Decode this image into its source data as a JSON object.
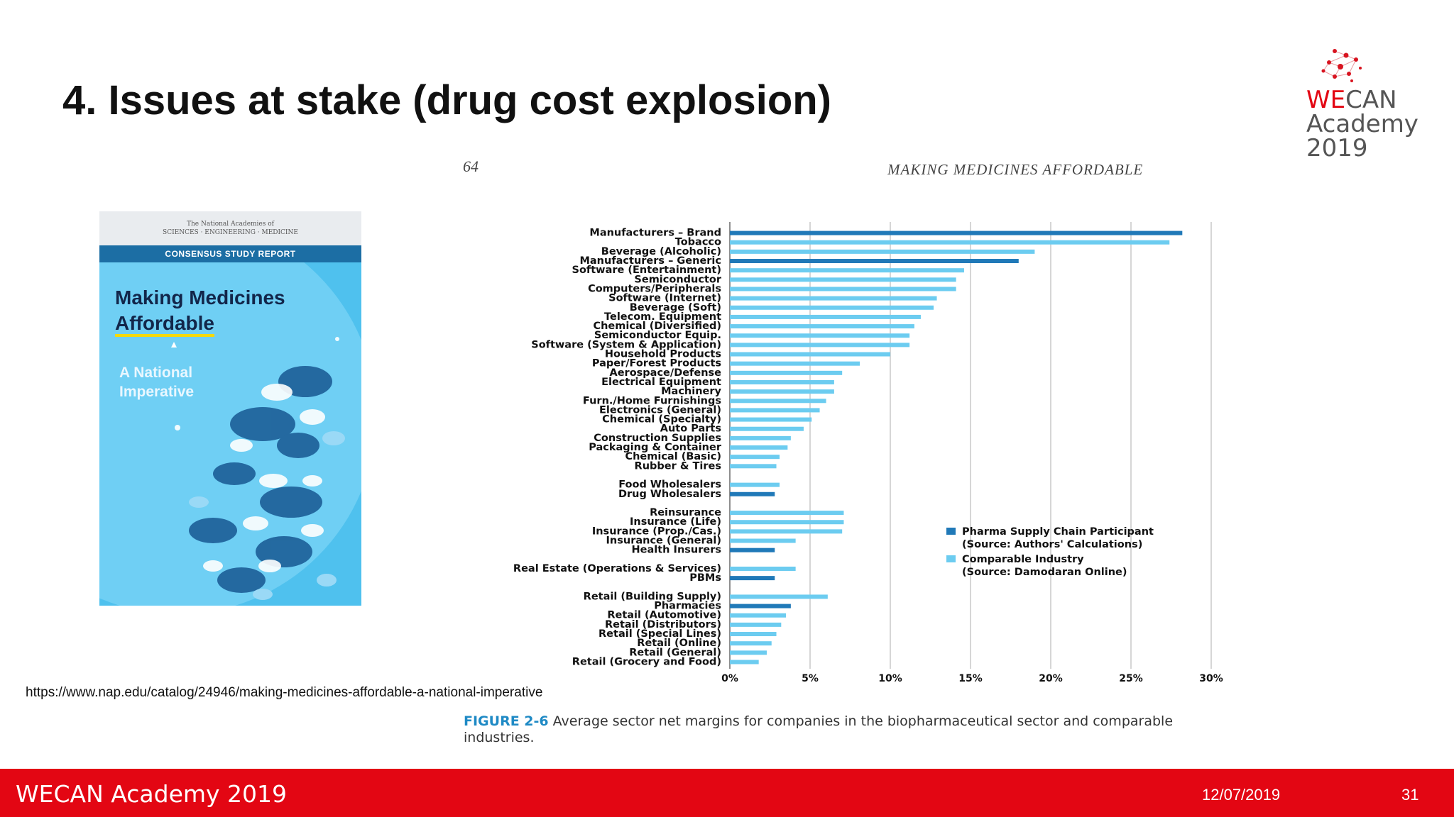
{
  "slide": {
    "title": "4. Issues at stake (drug cost explosion)",
    "source_url": "https://www.nap.edu/catalog/24946/making-medicines-affordable-a-national-imperative",
    "footer_brand": "WECAN Academy 2019",
    "footer_date": "12/07/2019",
    "page_number": "31"
  },
  "logo": {
    "we": "WE",
    "can": "CAN",
    "line2": "Academy",
    "line3": "2019"
  },
  "book": {
    "publisher_line1": "The National Academies of",
    "publisher_line2": "SCIENCES · ENGINEERING · MEDICINE",
    "band": "CONSENSUS STUDY REPORT",
    "title_line1": "Making Medicines",
    "title_line2": "Affordable",
    "subtitle_line1": "A National",
    "subtitle_line2": "Imperative"
  },
  "page_header": {
    "page_number": "64",
    "running_head": "MAKING MEDICINES AFFORDABLE"
  },
  "figure": {
    "label": "FIGURE 2-6",
    "caption": "Average sector net margins for companies in the biopharmaceutical sector and comparable industries."
  },
  "colors": {
    "pharma": "#2079b8",
    "comparable": "#6cccf0",
    "footer": "#e30613"
  },
  "chart_data": {
    "type": "bar",
    "orientation": "horizontal",
    "xlim": [
      0,
      30
    ],
    "x_ticks": [
      "0%",
      "5%",
      "10%",
      "15%",
      "20%",
      "25%",
      "30%"
    ],
    "grid": true,
    "legend_position": "right",
    "legend": [
      {
        "key": "pharma",
        "line1": "Pharma Supply Chain Participant",
        "line2": "(Source: Authors' Calculations)"
      },
      {
        "key": "comparable",
        "line1": "Comparable Industry",
        "line2": "(Source: Damodaran Online)"
      }
    ],
    "groups": [
      [
        {
          "label": "Manufacturers – Brand",
          "value": 28.2,
          "series": "pharma"
        },
        {
          "label": "Tobacco",
          "value": 27.4,
          "series": "comparable"
        },
        {
          "label": "Beverage (Alcoholic)",
          "value": 19.0,
          "series": "comparable"
        },
        {
          "label": "Manufacturers – Generic",
          "value": 18.0,
          "series": "pharma"
        },
        {
          "label": "Software (Entertainment)",
          "value": 14.6,
          "series": "comparable"
        },
        {
          "label": "Semiconductor",
          "value": 14.1,
          "series": "comparable"
        },
        {
          "label": "Computers/Peripherals",
          "value": 14.1,
          "series": "comparable"
        },
        {
          "label": "Software (Internet)",
          "value": 12.9,
          "series": "comparable"
        },
        {
          "label": "Beverage (Soft)",
          "value": 12.7,
          "series": "comparable"
        },
        {
          "label": "Telecom. Equipment",
          "value": 11.9,
          "series": "comparable"
        },
        {
          "label": "Chemical (Diversified)",
          "value": 11.5,
          "series": "comparable"
        },
        {
          "label": "Semiconductor Equip.",
          "value": 11.2,
          "series": "comparable"
        },
        {
          "label": "Software (System & Application)",
          "value": 11.2,
          "series": "comparable"
        },
        {
          "label": "Household Products",
          "value": 10.0,
          "series": "comparable"
        },
        {
          "label": "Paper/Forest Products",
          "value": 8.1,
          "series": "comparable"
        },
        {
          "label": "Aerospace/Defense",
          "value": 7.0,
          "series": "comparable"
        },
        {
          "label": "Electrical Equipment",
          "value": 6.5,
          "series": "comparable"
        },
        {
          "label": "Machinery",
          "value": 6.5,
          "series": "comparable"
        },
        {
          "label": "Furn./Home Furnishings",
          "value": 6.0,
          "series": "comparable"
        },
        {
          "label": "Electronics (General)",
          "value": 5.6,
          "series": "comparable"
        },
        {
          "label": "Chemical (Specialty)",
          "value": 5.1,
          "series": "comparable"
        },
        {
          "label": "Auto Parts",
          "value": 4.6,
          "series": "comparable"
        },
        {
          "label": "Construction Supplies",
          "value": 3.8,
          "series": "comparable"
        },
        {
          "label": "Packaging & Container",
          "value": 3.6,
          "series": "comparable"
        },
        {
          "label": "Chemical (Basic)",
          "value": 3.1,
          "series": "comparable"
        },
        {
          "label": "Rubber & Tires",
          "value": 2.9,
          "series": "comparable"
        }
      ],
      [
        {
          "label": "Food Wholesalers",
          "value": 3.1,
          "series": "comparable"
        },
        {
          "label": "Drug Wholesalers",
          "value": 2.8,
          "series": "pharma"
        }
      ],
      [
        {
          "label": "Reinsurance",
          "value": 7.1,
          "series": "comparable"
        },
        {
          "label": "Insurance (Life)",
          "value": 7.1,
          "series": "comparable"
        },
        {
          "label": "Insurance (Prop./Cas.)",
          "value": 7.0,
          "series": "comparable"
        },
        {
          "label": "Insurance (General)",
          "value": 4.1,
          "series": "comparable"
        },
        {
          "label": "Health Insurers",
          "value": 2.8,
          "series": "pharma"
        }
      ],
      [
        {
          "label": "Real Estate (Operations & Services)",
          "value": 4.1,
          "series": "comparable"
        },
        {
          "label": "PBMs",
          "value": 2.8,
          "series": "pharma"
        }
      ],
      [
        {
          "label": "Retail (Building Supply)",
          "value": 6.1,
          "series": "comparable"
        },
        {
          "label": "Pharmacies",
          "value": 3.8,
          "series": "pharma"
        },
        {
          "label": "Retail (Automotive)",
          "value": 3.5,
          "series": "comparable"
        },
        {
          "label": "Retail (Distributors)",
          "value": 3.2,
          "series": "comparable"
        },
        {
          "label": "Retail (Special Lines)",
          "value": 2.9,
          "series": "comparable"
        },
        {
          "label": "Retail (Online)",
          "value": 2.6,
          "series": "comparable"
        },
        {
          "label": "Retail (General)",
          "value": 2.3,
          "series": "comparable"
        },
        {
          "label": "Retail (Grocery and Food)",
          "value": 1.8,
          "series": "comparable"
        }
      ]
    ]
  }
}
